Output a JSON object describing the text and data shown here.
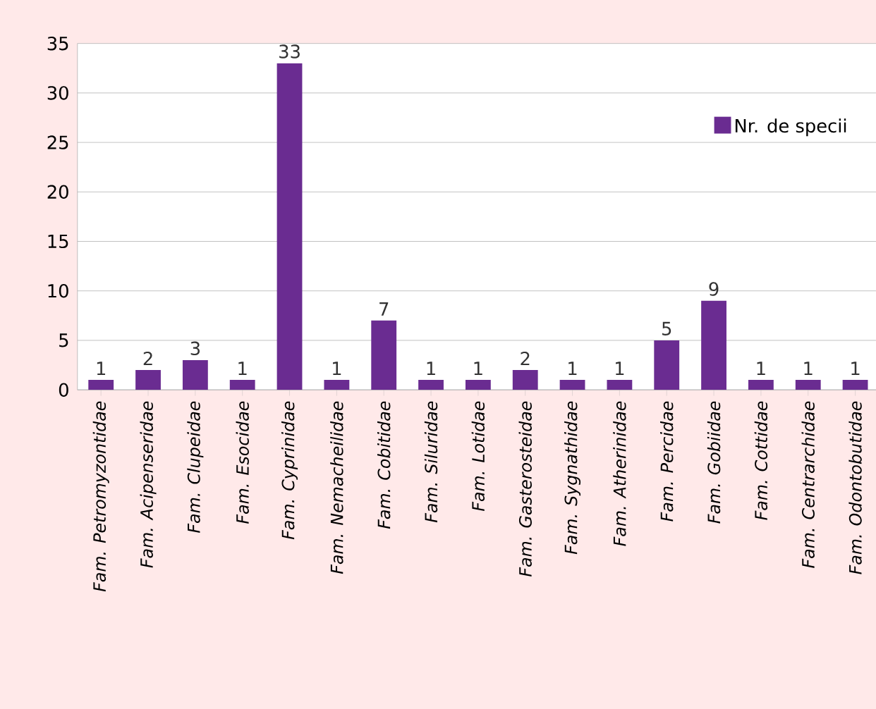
{
  "chart_data": {
    "type": "bar",
    "categories": [
      "Fam. Petromyzontidae",
      "Fam. Acipenseridae",
      "Fam. Clupeidae",
      "Fam. Esocidae",
      "Fam.  Cyprinidae",
      "Fam. Nemacheilidae",
      "Fam. Cobitidae",
      "Fam. Siluridae",
      "Fam. Lotidae",
      "Fam. Gasterosteidae",
      "Fam. Sygnathidae",
      "Fam. Atherinidae",
      "Fam. Percidae",
      "Fam. Gobiidae",
      "Fam. Cottidae",
      "Fam. Centrarchidae",
      "Fam. Odontobutidae"
    ],
    "series": [
      {
        "name": "Nr. de specii",
        "color": "#6a2c91",
        "values": [
          1,
          2,
          3,
          1,
          33,
          1,
          7,
          1,
          1,
          2,
          1,
          1,
          5,
          9,
          1,
          1,
          1
        ]
      }
    ],
    "ylim": [
      0,
      35
    ],
    "yticks": [
      0,
      5,
      10,
      15,
      20,
      25,
      30,
      35
    ],
    "grid": "y",
    "legend": "top right",
    "data_labels": true
  }
}
